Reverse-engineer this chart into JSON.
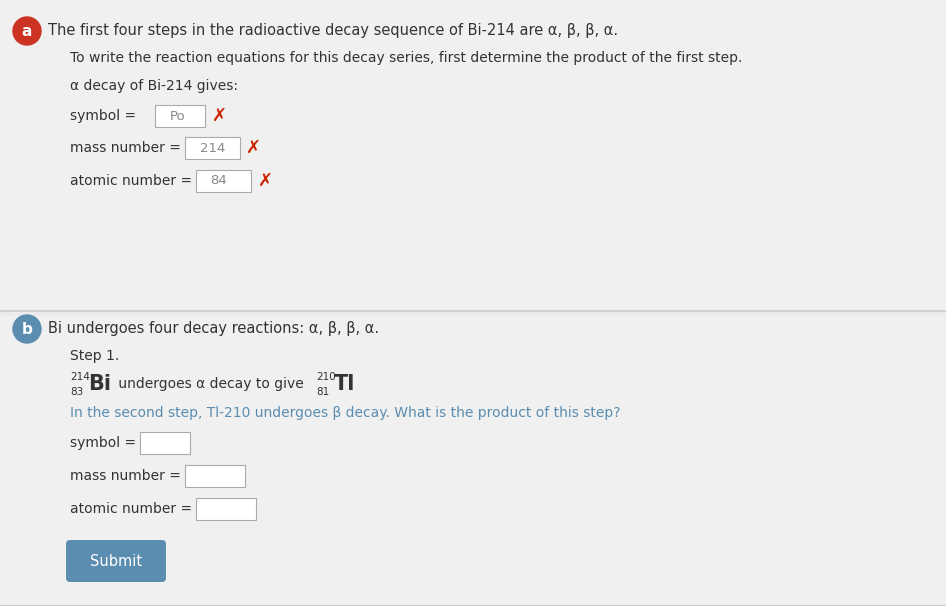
{
  "bg_color": "#ebebeb",
  "section_bg": "#f0f0f0",
  "white": "#ffffff",
  "divider_color": "#cccccc",
  "text_color": "#333333",
  "blue_text": "#5b8db0",
  "red_color": "#cc2200",
  "label_a_bg": "#cc3322",
  "label_b_bg": "#5b8db0",
  "input_border": "#aaaaaa",
  "submit_bg": "#5b8db0",
  "submit_text": "white",
  "section_a_title": "The first four steps in the radioactive decay sequence of Bi-214 are α, β, β, α.",
  "section_a_line2": "To write the reaction equations for this decay series, first determine the product of the first step.",
  "section_a_line3": "α decay of Bi-214 gives:",
  "symbol_label": "symbol = ",
  "symbol_value": "Po",
  "mass_label": "mass number = ",
  "mass_value": "214",
  "atomic_label": "atomic number = ",
  "atomic_value": "84",
  "section_b_title": "Bi undergoes four decay reactions: α, β, β, α.",
  "step1_label": "Step 1.",
  "bi_superscript": "214",
  "bi_subscript": "83",
  "tl_superscript": "210",
  "tl_subscript": "81",
  "tl_symbol": "Tl",
  "bi_symbol": "Bi",
  "middle_text": " undergoes α decay to give ",
  "question_line": "In the second step, Tl-210 undergoes β decay. What is the product of this step?",
  "symbol2_label": "symbol = ",
  "mass2_label": "mass number = ",
  "atomic2_label": "atomic number = ",
  "submit_label": "Submit",
  "x_mark": "✗"
}
